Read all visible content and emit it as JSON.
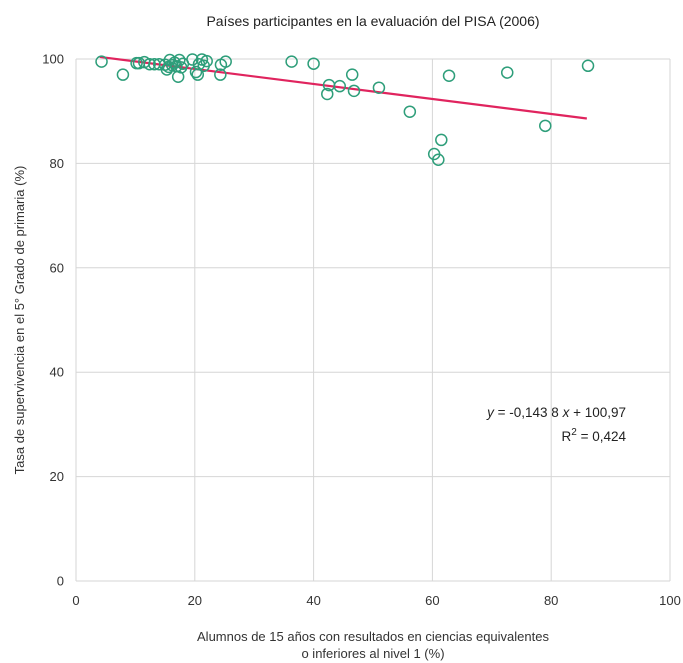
{
  "chart_data": {
    "type": "scatter",
    "title": "Países participantes en la evaluación del PISA (2006)",
    "xlabel_line1": "Alumnos de 15 años con resultados en ciencias equivalentes",
    "xlabel_line2": "o inferiores al nivel 1 (%)",
    "ylabel": "Tasa de supervivencia en el 5° Grado de primaria (%)",
    "xlim": [
      0,
      100
    ],
    "ylim": [
      0,
      100
    ],
    "xticks": [
      "0",
      "20",
      "40",
      "60",
      "80",
      "100"
    ],
    "yticks": [
      "0",
      "20",
      "40",
      "60",
      "80",
      "100"
    ],
    "grid": "horizontal and vertical",
    "marker_color": "#2e9e7a",
    "trend_color": "#e0245e",
    "trendline": {
      "slope": -0.1438,
      "intercept": 100.97,
      "x_range": [
        4,
        86
      ],
      "equation_y": "y",
      "equation_rest": " = -0,143 8 ",
      "equation_x": "x",
      "equation_end": " + 100,97",
      "r2_label": "R",
      "r2_sup": "2",
      "r2_value": " = 0,424"
    },
    "points": [
      {
        "x": 4.3,
        "y": 99.5
      },
      {
        "x": 7.9,
        "y": 97.0
      },
      {
        "x": 10.2,
        "y": 99.2
      },
      {
        "x": 10.6,
        "y": 99.2
      },
      {
        "x": 11.5,
        "y": 99.4
      },
      {
        "x": 12.4,
        "y": 99.0
      },
      {
        "x": 13.2,
        "y": 99.0
      },
      {
        "x": 14.0,
        "y": 99.0
      },
      {
        "x": 15.0,
        "y": 98.9
      },
      {
        "x": 15.3,
        "y": 98.0
      },
      {
        "x": 15.6,
        "y": 98.5
      },
      {
        "x": 15.8,
        "y": 99.8
      },
      {
        "x": 16.2,
        "y": 98.8
      },
      {
        "x": 16.6,
        "y": 99.3
      },
      {
        "x": 16.9,
        "y": 98.6
      },
      {
        "x": 17.2,
        "y": 96.6
      },
      {
        "x": 17.4,
        "y": 99.8
      },
      {
        "x": 17.7,
        "y": 98.4
      },
      {
        "x": 18.0,
        "y": 99.1
      },
      {
        "x": 19.6,
        "y": 99.9
      },
      {
        "x": 20.2,
        "y": 97.5
      },
      {
        "x": 20.5,
        "y": 97.0
      },
      {
        "x": 20.7,
        "y": 99.0
      },
      {
        "x": 21.2,
        "y": 99.9
      },
      {
        "x": 21.5,
        "y": 98.7
      },
      {
        "x": 22.0,
        "y": 99.6
      },
      {
        "x": 24.3,
        "y": 97.0
      },
      {
        "x": 24.4,
        "y": 98.9
      },
      {
        "x": 25.2,
        "y": 99.5
      },
      {
        "x": 36.3,
        "y": 99.5
      },
      {
        "x": 40.0,
        "y": 99.1
      },
      {
        "x": 42.3,
        "y": 93.3
      },
      {
        "x": 42.6,
        "y": 95.0
      },
      {
        "x": 44.4,
        "y": 94.8
      },
      {
        "x": 46.5,
        "y": 97.0
      },
      {
        "x": 46.8,
        "y": 93.9
      },
      {
        "x": 51.0,
        "y": 94.5
      },
      {
        "x": 56.2,
        "y": 89.9
      },
      {
        "x": 60.3,
        "y": 81.8
      },
      {
        "x": 61.0,
        "y": 80.7
      },
      {
        "x": 61.5,
        "y": 84.5
      },
      {
        "x": 62.8,
        "y": 96.8
      },
      {
        "x": 72.6,
        "y": 97.4
      },
      {
        "x": 79.0,
        "y": 87.2
      },
      {
        "x": 86.2,
        "y": 98.7
      }
    ]
  }
}
